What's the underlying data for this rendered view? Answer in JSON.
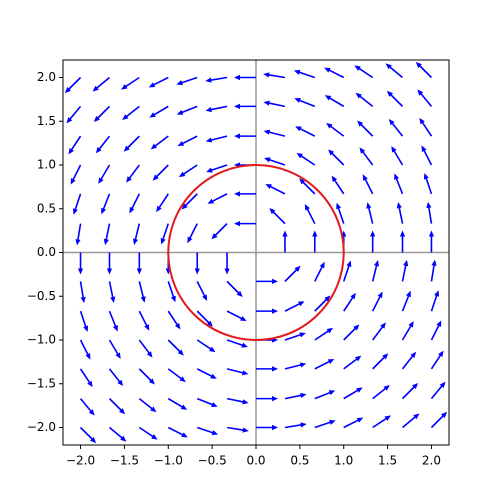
{
  "chart_data": {
    "type": "quiver",
    "color": "#0000ff",
    "x": [
      -2,
      -1.67,
      -1.33,
      -1,
      -0.67,
      -0.33,
      0,
      0.33,
      0.67,
      1,
      1.33,
      1.67,
      2
    ],
    "y": [
      -2,
      -1.67,
      -1.33,
      -1,
      -0.67,
      -0.33,
      0,
      0.33,
      0.67,
      1,
      1.33,
      1.67,
      2
    ],
    "u": [
      [
        0.71,
        0.77,
        0.83,
        0.89,
        0.95,
        0.99,
        1,
        0.99,
        0.95,
        0.89,
        0.83,
        0.77,
        0.71
      ],
      [
        0.64,
        0.71,
        0.78,
        0.86,
        0.93,
        0.98,
        1,
        0.98,
        0.93,
        0.86,
        0.78,
        0.71,
        0.64
      ],
      [
        0.55,
        0.62,
        0.71,
        0.8,
        0.89,
        0.97,
        1,
        0.97,
        0.89,
        0.8,
        0.71,
        0.62,
        0.55
      ],
      [
        0.45,
        0.51,
        0.6,
        0.71,
        0.83,
        0.95,
        1,
        0.95,
        0.83,
        0.71,
        0.6,
        0.51,
        0.45
      ],
      [
        0.32,
        0.37,
        0.45,
        0.55,
        0.71,
        0.89,
        1,
        0.89,
        0.71,
        0.55,
        0.45,
        0.37,
        0.32
      ],
      [
        0.16,
        0.2,
        0.24,
        0.32,
        0.45,
        0.71,
        1,
        0.71,
        0.45,
        0.32,
        0.24,
        0.2,
        0.16
      ],
      [
        0,
        0,
        0,
        0,
        0,
        0,
        0,
        0,
        0,
        0,
        0,
        0,
        0
      ],
      [
        -0.16,
        -0.2,
        -0.24,
        -0.32,
        -0.45,
        -0.71,
        -1,
        -0.71,
        -0.45,
        -0.32,
        -0.24,
        -0.2,
        -0.16
      ],
      [
        -0.32,
        -0.37,
        -0.45,
        -0.55,
        -0.71,
        -0.89,
        -1,
        -0.89,
        -0.71,
        -0.55,
        -0.45,
        -0.37,
        -0.32
      ],
      [
        -0.45,
        -0.51,
        -0.6,
        -0.71,
        -0.83,
        -0.95,
        -1,
        -0.95,
        -0.83,
        -0.71,
        -0.6,
        -0.51,
        -0.45
      ],
      [
        -0.55,
        -0.62,
        -0.71,
        -0.8,
        -0.89,
        -0.97,
        -1,
        -0.97,
        -0.89,
        -0.8,
        -0.71,
        -0.62,
        -0.55
      ],
      [
        -0.64,
        -0.71,
        -0.78,
        -0.86,
        -0.93,
        -0.98,
        -1,
        -0.98,
        -0.93,
        -0.86,
        -0.78,
        -0.71,
        -0.64
      ],
      [
        -0.71,
        -0.77,
        -0.83,
        -0.89,
        -0.95,
        -0.99,
        -1,
        -0.99,
        -0.95,
        -0.89,
        -0.83,
        -0.77,
        -0.71
      ]
    ],
    "v": [
      [
        -0.71,
        -0.64,
        -0.55,
        -0.45,
        -0.32,
        -0.16,
        0,
        0.16,
        0.32,
        0.45,
        0.55,
        0.64,
        0.71
      ],
      [
        -0.77,
        -0.71,
        -0.62,
        -0.51,
        -0.37,
        -0.2,
        0,
        0.2,
        0.37,
        0.51,
        0.62,
        0.71,
        0.77
      ],
      [
        -0.83,
        -0.78,
        -0.71,
        -0.6,
        -0.45,
        -0.24,
        0,
        0.24,
        0.45,
        0.6,
        0.71,
        0.78,
        0.83
      ],
      [
        -0.89,
        -0.86,
        -0.8,
        -0.71,
        -0.55,
        -0.32,
        0,
        0.32,
        0.55,
        0.71,
        0.8,
        0.86,
        0.89
      ],
      [
        -0.95,
        -0.93,
        -0.89,
        -0.83,
        -0.71,
        -0.45,
        0,
        0.45,
        0.71,
        0.83,
        0.89,
        0.93,
        0.95
      ],
      [
        -0.99,
        -0.98,
        -0.97,
        -0.95,
        -0.89,
        -0.71,
        0,
        0.71,
        0.89,
        0.95,
        0.97,
        0.98,
        0.99
      ],
      [
        -1,
        -1,
        -1,
        -1,
        -1,
        -1,
        0,
        1,
        1,
        1,
        1,
        1,
        1
      ],
      [
        -0.99,
        -0.98,
        -0.97,
        -0.95,
        -0.89,
        -0.71,
        0,
        0.71,
        0.89,
        0.95,
        0.97,
        0.98,
        0.99
      ],
      [
        -0.95,
        -0.93,
        -0.89,
        -0.83,
        -0.71,
        -0.45,
        0,
        0.45,
        0.71,
        0.83,
        0.89,
        0.93,
        0.95
      ],
      [
        -0.89,
        -0.86,
        -0.8,
        -0.71,
        -0.55,
        -0.32,
        0,
        0.32,
        0.55,
        0.71,
        0.8,
        0.86,
        0.89
      ],
      [
        -0.83,
        -0.78,
        -0.71,
        -0.6,
        -0.45,
        -0.24,
        0,
        0.24,
        0.45,
        0.6,
        0.71,
        0.78,
        0.83
      ],
      [
        -0.77,
        -0.71,
        -0.62,
        -0.51,
        -0.37,
        -0.2,
        0,
        0.2,
        0.37,
        0.51,
        0.62,
        0.71,
        0.77
      ],
      [
        -0.71,
        -0.64,
        -0.55,
        -0.45,
        -0.32,
        -0.16,
        0,
        0.16,
        0.32,
        0.45,
        0.55,
        0.64,
        0.71
      ]
    ],
    "circle": {
      "center": [
        0,
        0
      ],
      "radius": 1,
      "color": "#e31a1c"
    },
    "axhline": 0,
    "axvline": 0,
    "xlim": [
      -2.2,
      2.2
    ],
    "ylim": [
      -2.2,
      2.2
    ],
    "xticks": [
      {
        "value": -2,
        "label": "−2.0"
      },
      {
        "value": -1.5,
        "label": "−1.5"
      },
      {
        "value": -1,
        "label": "−1.0"
      },
      {
        "value": -0.5,
        "label": "−0.5"
      },
      {
        "value": 0,
        "label": "0.0"
      },
      {
        "value": 0.5,
        "label": "0.5"
      },
      {
        "value": 1,
        "label": "1.0"
      },
      {
        "value": 1.5,
        "label": "1.5"
      },
      {
        "value": 2,
        "label": "2.0"
      }
    ],
    "yticks": [
      {
        "value": -2,
        "label": "−2.0"
      },
      {
        "value": -1.5,
        "label": "−1.5"
      },
      {
        "value": -1,
        "label": "−1.0"
      },
      {
        "value": -0.5,
        "label": "−0.5"
      },
      {
        "value": 0,
        "label": "0.0"
      },
      {
        "value": 0.5,
        "label": "0.5"
      },
      {
        "value": 1,
        "label": "1.0"
      },
      {
        "value": 1.5,
        "label": "1.5"
      },
      {
        "value": 2,
        "label": "2.0"
      }
    ]
  }
}
